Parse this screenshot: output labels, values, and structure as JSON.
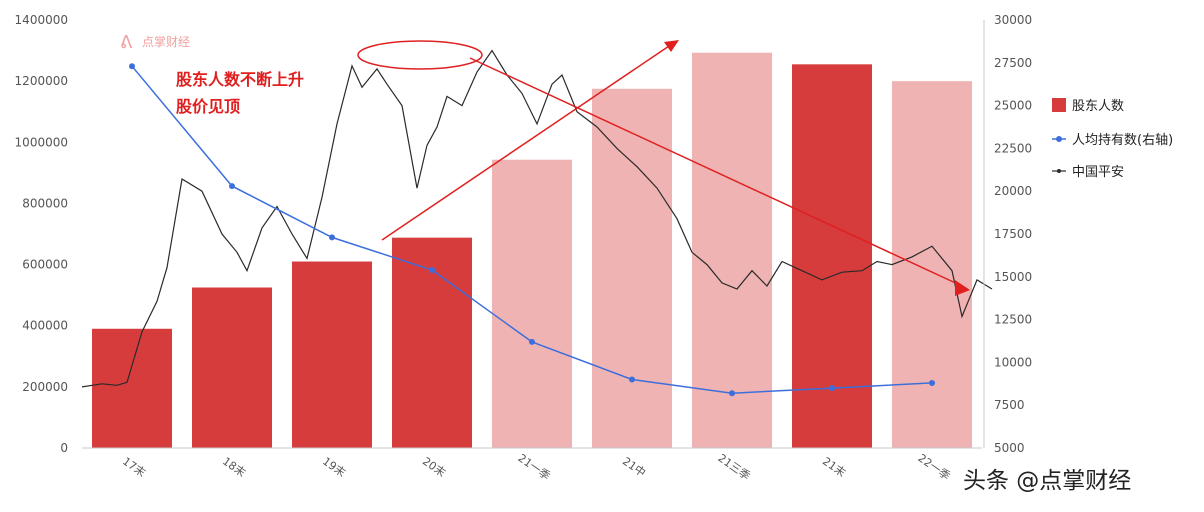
{
  "chart_data": {
    "type": "bar",
    "categories": [
      "17末",
      "18末",
      "19末",
      "20末",
      "21一季",
      "21中",
      "21三季",
      "21末",
      "22一季"
    ],
    "series": [
      {
        "name": "股东人数",
        "axis": "left",
        "values": [
          390000,
          525000,
          610000,
          688000,
          943000,
          1175000,
          1293000,
          1255000,
          1200000
        ],
        "colors": [
          "#d63c3c",
          "#d63c3c",
          "#d63c3c",
          "#d63c3c",
          "#f0b3b3",
          "#f0b3b3",
          "#f0b3b3",
          "#d63c3c",
          "#f0b3b3"
        ]
      },
      {
        "name": "人均持有数(右轴)",
        "axis": "right",
        "type": "line",
        "values": [
          27300,
          20300,
          17300,
          15400,
          11200,
          9000,
          8200,
          8500,
          8800
        ]
      },
      {
        "name": "中国平安",
        "axis": "left",
        "type": "line",
        "x": [
          0,
          0.2,
          0.35,
          0.45,
          0.6,
          0.75,
          0.85,
          1.0,
          1.2,
          1.4,
          1.55,
          1.65,
          1.8,
          1.95,
          2.1,
          2.25,
          2.4,
          2.55,
          2.7,
          2.8,
          2.95,
          3.05,
          3.2,
          3.35,
          3.45,
          3.55,
          3.65,
          3.8,
          3.95,
          4.1,
          4.25,
          4.4,
          4.55,
          4.7,
          4.8,
          4.95,
          5.15,
          5.35,
          5.55,
          5.75,
          5.95,
          6.1,
          6.25,
          6.4,
          6.55,
          6.7,
          6.85,
          7.0,
          7.2,
          7.4,
          7.6,
          7.8,
          7.95,
          8.1,
          8.3,
          8.5,
          8.7,
          8.8,
          8.95,
          9.1
        ],
        "values": [
          200000,
          210000,
          205000,
          215000,
          380000,
          480000,
          590000,
          880000,
          840000,
          700000,
          640000,
          580000,
          720000,
          790000,
          700000,
          620000,
          820000,
          1060000,
          1250000,
          1180000,
          1240000,
          1190000,
          1120000,
          850000,
          990000,
          1050000,
          1150000,
          1120000,
          1230000,
          1300000,
          1220000,
          1160000,
          1060000,
          1190000,
          1220000,
          1100000,
          1050000,
          980000,
          920000,
          850000,
          750000,
          640000,
          600000,
          540000,
          520000,
          580000,
          530000,
          610000,
          580000,
          550000,
          575000,
          580000,
          610000,
          600000,
          625000,
          660000,
          580000,
          430000,
          550000,
          520000
        ]
      }
    ],
    "y_left": {
      "ylim": [
        0,
        1400000
      ],
      "ticks": [
        "0",
        "200000",
        "400000",
        "600000",
        "800000",
        "1000000",
        "1200000",
        "1400000"
      ]
    },
    "y_right": {
      "ylim": [
        5000,
        30000
      ],
      "ticks": [
        "5000",
        "7500",
        "10000",
        "12500",
        "15000",
        "17500",
        "20000",
        "22500",
        "25000",
        "27500",
        "30000"
      ]
    },
    "legend": {
      "placement": "right",
      "entries": [
        "股东人数",
        "人均持有数(右轴)",
        "中国平安"
      ]
    },
    "annotations": {
      "title_line1": "股东人数不断上升",
      "title_line2": "股价见顶",
      "logo_text": "点掌财经"
    },
    "grid": false
  },
  "watermark": "头条 @点掌财经",
  "colors": {
    "bar_dark": "#d63c3c",
    "bar_light": "#f0b3b3",
    "per_capita_line": "#3d6fdc",
    "price_line": "#2a2a2a",
    "arrow": "#e02020",
    "axis_text": "#555555"
  }
}
